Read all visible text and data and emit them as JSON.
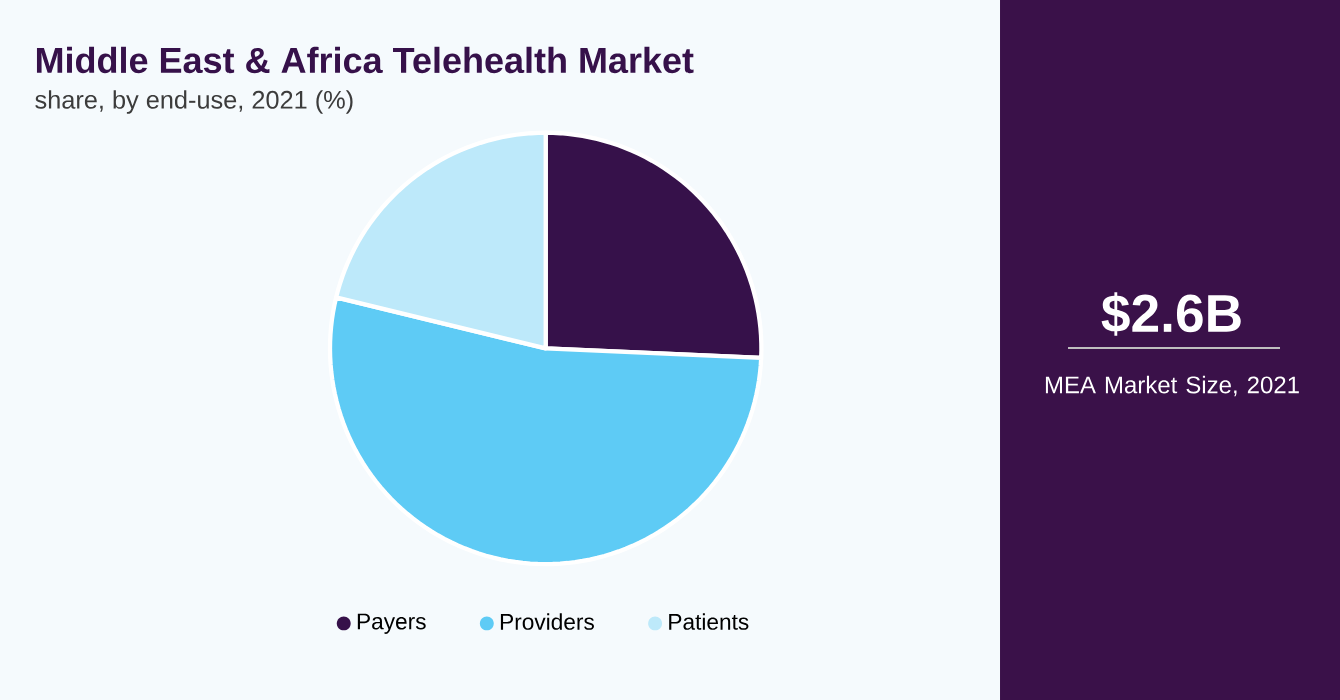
{
  "chart_data": {
    "type": "pie",
    "title": "Middle East & Africa Telehealth Market",
    "subtitle": "share, by end-use, 2021 (%)",
    "categories": [
      "Payers",
      "Providers",
      "Patients"
    ],
    "values": [
      25.7,
      53.1,
      21.2
    ],
    "colors": [
      "#36114a",
      "#5ecbf5",
      "#bde9fa"
    ],
    "legend": "bottom",
    "annotations": [
      "$2.6B",
      "MEA Market Size, 2021"
    ]
  }
}
